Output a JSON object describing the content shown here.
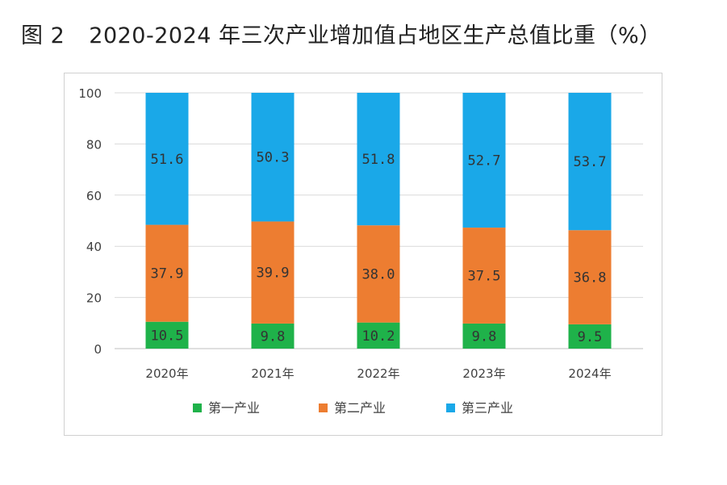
{
  "figure": {
    "number_label": "图 2",
    "title": "2020-2024 年三次产业增加值占地区生产总值比重（%）"
  },
  "chart_data": {
    "type": "bar",
    "stacked": true,
    "title": "2020-2024 年三次产业增加值占地区生产总值比重（%）",
    "categories": [
      "2020年",
      "2021年",
      "2022年",
      "2023年",
      "2024年"
    ],
    "series": [
      {
        "name": "第一产业",
        "color": "#1fb24a",
        "values": [
          10.5,
          9.8,
          10.2,
          9.8,
          9.5
        ]
      },
      {
        "name": "第二产业",
        "color": "#ed7d31",
        "values": [
          37.9,
          39.9,
          38.0,
          37.5,
          36.8
        ]
      },
      {
        "name": "第三产业",
        "color": "#1aa8e8",
        "values": [
          51.6,
          50.3,
          51.8,
          52.7,
          53.7
        ]
      }
    ],
    "ylim": [
      0,
      100
    ],
    "yticks": [
      0,
      20,
      40,
      60,
      80,
      100
    ],
    "xlabel": "",
    "ylabel": "",
    "grid": true,
    "legend_position": "bottom"
  }
}
